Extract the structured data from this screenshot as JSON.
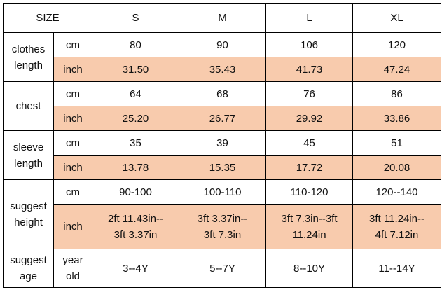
{
  "header": {
    "size_label": "SIZE",
    "sizes": [
      "S",
      "M",
      "L",
      "XL"
    ]
  },
  "highlight_color": "#f8cbad",
  "rows": {
    "clothes_length": {
      "label_line1": "clothes",
      "label_line2": "length",
      "cm": {
        "unit": "cm",
        "values": [
          "80",
          "90",
          "106",
          "120"
        ]
      },
      "inch": {
        "unit": "inch",
        "values": [
          "31.50",
          "35.43",
          "41.73",
          "47.24"
        ]
      }
    },
    "chest": {
      "label": "chest",
      "cm": {
        "unit": "cm",
        "values": [
          "64",
          "68",
          "76",
          "86"
        ]
      },
      "inch": {
        "unit": "inch",
        "values": [
          "25.20",
          "26.77",
          "29.92",
          "33.86"
        ]
      }
    },
    "sleeve_length": {
      "label_line1": "sleeve",
      "label_line2": "length",
      "cm": {
        "unit": "cm",
        "values": [
          "35",
          "39",
          "45",
          "51"
        ]
      },
      "inch": {
        "unit": "inch",
        "values": [
          "13.78",
          "15.35",
          "17.72",
          "20.08"
        ]
      }
    },
    "suggest_height": {
      "label_line1": "suggest",
      "label_line2": "height",
      "cm": {
        "unit": "cm",
        "values": [
          "90-100",
          "100-110",
          "110-120",
          "120--140"
        ]
      },
      "inch": {
        "unit": "inch",
        "values": [
          {
            "line1": "2ft 11.43in--",
            "line2": "3ft 3.37in"
          },
          {
            "line1": "3ft 3.37in--",
            "line2": "3ft 7.3in"
          },
          {
            "line1": "3ft 7.3in--3ft",
            "line2": "11.24in"
          },
          {
            "line1": "3ft 11.24in--",
            "line2": "4ft 7.12in"
          }
        ]
      }
    },
    "suggest_age": {
      "label_line1": "suggest",
      "label_line2": "age",
      "unit_line1": "year",
      "unit_line2": "old",
      "values": [
        "3--4Y",
        "5--7Y",
        "8--10Y",
        "11--14Y"
      ]
    }
  }
}
